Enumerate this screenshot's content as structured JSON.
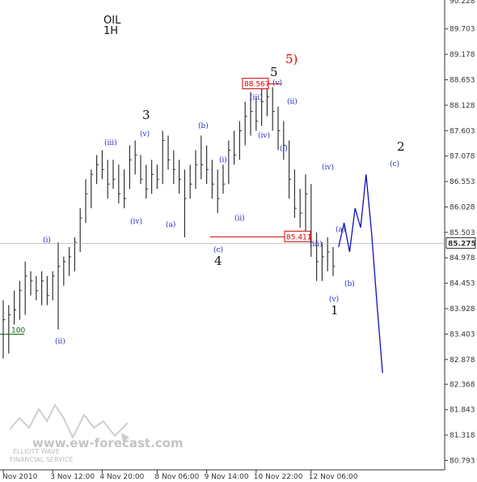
{
  "chart_data": {
    "type": "candlestick",
    "title": "OIL",
    "subtitle": "1H",
    "ylim": [
      80.6,
      90.3
    ],
    "y_ticks": [
      "89.703",
      "89.178",
      "88.653",
      "88.128",
      "87.603",
      "87.078",
      "86.553",
      "86.028",
      "85.503",
      "84.978",
      "84.453",
      "83.928",
      "83.403",
      "82.878",
      "82.368",
      "81.843",
      "81.318",
      "80.793"
    ],
    "x_tick_labels": [
      "Nov 2010",
      "3 Nov 12:00",
      "4 Nov 20:00",
      "8 Nov 06:00",
      "9 Nov 14:00",
      "10 Nov 22:00",
      "12 Nov 06:00"
    ],
    "top_tick_partial": "90.228",
    "current_price": "85.275",
    "bars": [
      [
        0,
        84.1,
        82.9,
        83.7
      ],
      [
        1,
        84.0,
        83.0,
        83.8
      ],
      [
        2,
        84.3,
        83.6,
        83.9
      ],
      [
        3,
        84.5,
        83.7,
        84.3
      ],
      [
        4,
        84.9,
        83.8,
        84.6
      ],
      [
        5,
        84.7,
        84.2,
        84.5
      ],
      [
        6,
        84.6,
        84.1,
        84.3
      ],
      [
        7,
        84.7,
        84.0,
        84.5
      ],
      [
        8,
        84.6,
        84.0,
        84.2
      ],
      [
        9,
        84.7,
        84.1,
        84.6
      ],
      [
        10,
        85.3,
        83.5,
        84.8
      ],
      [
        11,
        85.0,
        84.4,
        84.9
      ],
      [
        12,
        85.2,
        84.6,
        85.0
      ],
      [
        13,
        85.4,
        84.7,
        85.3
      ],
      [
        14,
        86.0,
        85.1,
        85.8
      ],
      [
        15,
        86.6,
        85.7,
        86.3
      ],
      [
        16,
        86.8,
        86.0,
        86.7
      ],
      [
        17,
        87.1,
        86.5,
        86.9
      ],
      [
        18,
        87.2,
        86.6,
        86.8
      ],
      [
        19,
        87.0,
        86.2,
        86.5
      ],
      [
        20,
        87.0,
        86.4,
        86.6
      ],
      [
        21,
        86.9,
        86.1,
        86.3
      ],
      [
        22,
        86.8,
        86.0,
        86.2
      ],
      [
        23,
        87.3,
        86.4,
        87.0
      ],
      [
        24,
        87.4,
        86.7,
        87.1
      ],
      [
        25,
        87.1,
        86.5,
        86.6
      ],
      [
        26,
        86.9,
        86.2,
        86.4
      ],
      [
        27,
        87.0,
        86.3,
        86.7
      ],
      [
        28,
        86.9,
        86.4,
        86.6
      ],
      [
        29,
        87.6,
        86.5,
        87.4
      ],
      [
        30,
        87.5,
        86.8,
        87.0
      ],
      [
        31,
        87.2,
        86.5,
        86.8
      ],
      [
        32,
        87.0,
        86.3,
        86.6
      ],
      [
        33,
        86.8,
        85.4,
        86.2
      ],
      [
        34,
        86.9,
        86.2,
        86.5
      ],
      [
        35,
        87.2,
        86.4,
        86.9
      ],
      [
        36,
        87.5,
        86.6,
        86.9
      ],
      [
        37,
        87.3,
        86.5,
        86.8
      ],
      [
        38,
        87.0,
        86.2,
        86.5
      ],
      [
        39,
        86.8,
        85.9,
        86.2
      ],
      [
        40,
        86.9,
        86.3,
        86.5
      ],
      [
        41,
        87.4,
        86.5,
        87.2
      ],
      [
        42,
        87.6,
        86.9,
        87.1
      ],
      [
        43,
        87.8,
        87.0,
        87.6
      ],
      [
        44,
        88.2,
        87.3,
        87.9
      ],
      [
        45,
        88.4,
        87.5,
        88.0
      ],
      [
        46,
        88.3,
        87.6,
        87.8
      ],
      [
        47,
        88.5,
        87.7,
        88.2
      ],
      [
        48,
        88.6,
        87.9,
        88.3
      ],
      [
        49,
        88.5,
        87.6,
        88.0
      ],
      [
        50,
        88.1,
        87.2,
        87.6
      ],
      [
        51,
        87.8,
        87.0,
        87.3
      ],
      [
        52,
        87.4,
        86.2,
        86.6
      ],
      [
        53,
        86.8,
        85.8,
        86.0
      ],
      [
        54,
        86.4,
        85.6,
        85.9
      ],
      [
        55,
        86.7,
        85.5,
        86.3
      ],
      [
        56,
        86.5,
        85.0,
        85.3
      ],
      [
        57,
        85.5,
        84.5,
        84.9
      ],
      [
        58,
        85.3,
        84.5,
        85.0
      ],
      [
        59,
        85.4,
        84.7,
        85.1
      ],
      [
        60,
        85.2,
        84.6,
        84.8
      ]
    ],
    "forecast_path": [
      [
        61,
        85.2
      ],
      [
        62,
        85.7
      ],
      [
        63,
        85.1
      ],
      [
        64,
        86.0
      ],
      [
        65,
        85.6
      ],
      [
        66,
        86.7
      ],
      [
        67,
        85.5
      ],
      [
        68,
        84.0
      ],
      [
        69,
        82.6
      ]
    ],
    "levels": [
      {
        "label": "88.567",
        "value": 88.567
      },
      {
        "label": "85.411",
        "value": 85.411
      },
      {
        "label": "100",
        "value": 83.4
      }
    ],
    "wave_labels_major": [
      "3",
      "4",
      "5",
      "1",
      "2"
    ],
    "wave_label_red": "5)",
    "wave_labels_minor": [
      "(i)",
      "(ii)",
      "(iii)",
      "(iv)",
      "(v)",
      "(b)",
      "(a)",
      "(c)",
      "(i)",
      "(ii)",
      "(iii)",
      "(iv)",
      "(v)",
      "(ii)",
      "(i)",
      "(iv)",
      "(iii)",
      "(v)",
      "(a)",
      "(b)",
      "(c)"
    ]
  },
  "logo": {
    "site": "www.ew-forecast.com",
    "line1": "ELLIOTT WAVE",
    "line2": "FINANCIAL SERVICE"
  },
  "colors": {
    "bars": "#333333",
    "forecast": "#1010c0",
    "red_level": "#d40000",
    "green_level": "#006400",
    "minor_labels": "#2b2bc8"
  }
}
